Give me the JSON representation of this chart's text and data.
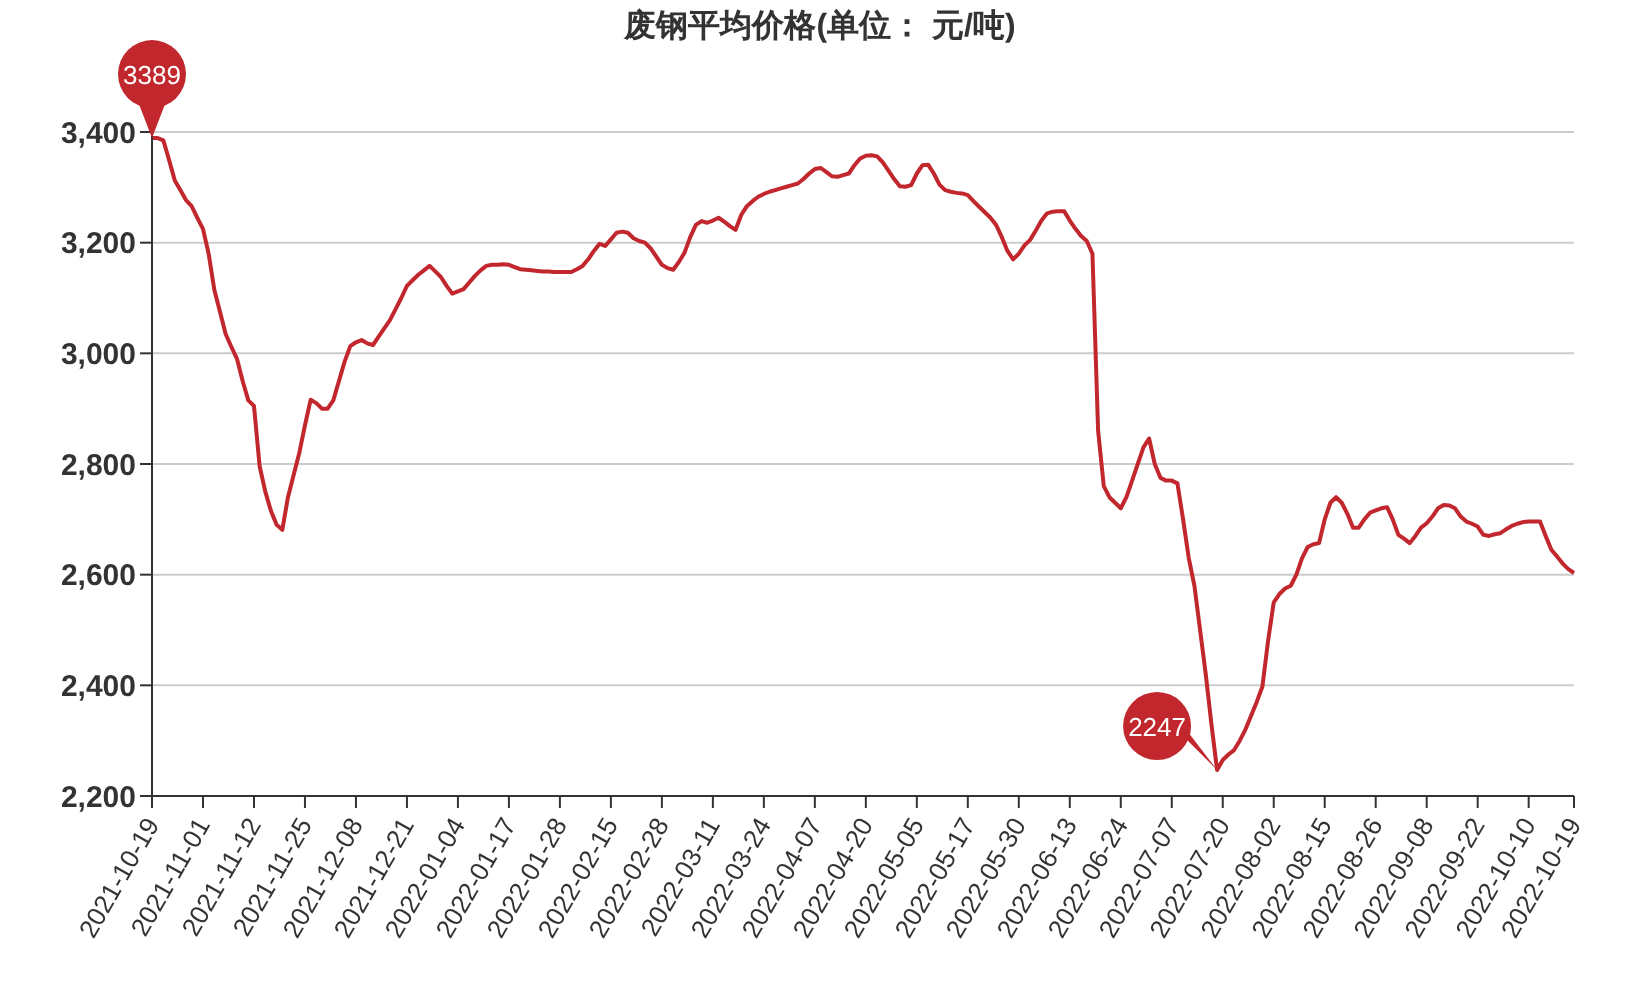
{
  "chart_data": {
    "type": "line",
    "title": "废钢平均价格(单位：  元/吨)",
    "categories": [
      "2021-10-19",
      null,
      null,
      null,
      null,
      null,
      null,
      null,
      null,
      "2021-11-01",
      null,
      null,
      null,
      null,
      null,
      null,
      null,
      null,
      "2021-11-12",
      null,
      null,
      null,
      null,
      null,
      null,
      null,
      null,
      "2021-11-25",
      null,
      null,
      null,
      null,
      null,
      null,
      null,
      null,
      "2021-12-08",
      null,
      null,
      null,
      null,
      null,
      null,
      null,
      null,
      "2021-12-21",
      null,
      null,
      null,
      null,
      null,
      null,
      null,
      null,
      "2022-01-04",
      null,
      null,
      null,
      null,
      null,
      null,
      null,
      null,
      "2022-01-17",
      null,
      null,
      null,
      null,
      null,
      null,
      null,
      null,
      "2022-01-28",
      null,
      null,
      null,
      null,
      null,
      null,
      null,
      null,
      "2022-02-15",
      null,
      null,
      null,
      null,
      null,
      null,
      null,
      null,
      "2022-02-28",
      null,
      null,
      null,
      null,
      null,
      null,
      null,
      null,
      "2022-03-11",
      null,
      null,
      null,
      null,
      null,
      null,
      null,
      null,
      "2022-03-24",
      null,
      null,
      null,
      null,
      null,
      null,
      null,
      null,
      "2022-04-07",
      null,
      null,
      null,
      null,
      null,
      null,
      null,
      null,
      "2022-04-20",
      null,
      null,
      null,
      null,
      null,
      null,
      null,
      null,
      "2022-05-05",
      null,
      null,
      null,
      null,
      null,
      null,
      null,
      null,
      "2022-05-17",
      null,
      null,
      null,
      null,
      null,
      null,
      null,
      null,
      "2022-05-30",
      null,
      null,
      null,
      null,
      null,
      null,
      null,
      null,
      "2022-06-13",
      null,
      null,
      null,
      null,
      null,
      null,
      null,
      null,
      "2022-06-24",
      null,
      null,
      null,
      null,
      null,
      null,
      null,
      null,
      "2022-07-07",
      null,
      null,
      null,
      null,
      null,
      null,
      null,
      null,
      "2022-07-20",
      null,
      null,
      null,
      null,
      null,
      null,
      null,
      null,
      "2022-08-02",
      null,
      null,
      null,
      null,
      null,
      null,
      null,
      null,
      "2022-08-15",
      null,
      null,
      null,
      null,
      null,
      null,
      null,
      null,
      "2022-08-26",
      null,
      null,
      null,
      null,
      null,
      null,
      null,
      null,
      "2022-09-08",
      null,
      null,
      null,
      null,
      null,
      null,
      null,
      null,
      "2022-09-22",
      null,
      null,
      null,
      null,
      null,
      null,
      null,
      null,
      "2022-10-10",
      null,
      null,
      null,
      null,
      null,
      null,
      null,
      "2022-10-19"
    ],
    "values": [
      3389,
      3389,
      3385,
      3350,
      3313,
      3295,
      3277,
      3266,
      3245,
      3225,
      3180,
      3115,
      3075,
      3035,
      3012,
      2990,
      2950,
      2915,
      2905,
      2796,
      2750,
      2715,
      2690,
      2681,
      2740,
      2780,
      2820,
      2870,
      2916,
      2910,
      2900,
      2900,
      2915,
      2950,
      2985,
      3013,
      3020,
      3024,
      3018,
      3015,
      3030,
      3045,
      3060,
      3080,
      3100,
      3122,
      3132,
      3142,
      3150,
      3158,
      3148,
      3138,
      3122,
      3108,
      3112,
      3116,
      3128,
      3140,
      3150,
      3158,
      3160,
      3160,
      3161,
      3160,
      3156,
      3152,
      3151,
      3150,
      3149,
      3148,
      3148,
      3147,
      3147,
      3147,
      3147,
      3152,
      3158,
      3170,
      3185,
      3198,
      3194,
      3206,
      3218,
      3220,
      3218,
      3208,
      3203,
      3200,
      3190,
      3175,
      3160,
      3154,
      3151,
      3165,
      3182,
      3210,
      3232,
      3239,
      3236,
      3240,
      3245,
      3238,
      3230,
      3223,
      3250,
      3266,
      3275,
      3283,
      3288,
      3292,
      3295,
      3298,
      3301,
      3304,
      3307,
      3315,
      3325,
      3333,
      3335,
      3328,
      3320,
      3319,
      3322,
      3325,
      3340,
      3352,
      3357,
      3358,
      3356,
      3345,
      3330,
      3315,
      3302,
      3301,
      3304,
      3325,
      3340,
      3341,
      3325,
      3305,
      3295,
      3292,
      3290,
      3289,
      3286,
      3275,
      3265,
      3255,
      3245,
      3232,
      3210,
      3185,
      3170,
      3180,
      3195,
      3205,
      3222,
      3240,
      3253,
      3256,
      3257,
      3257,
      3240,
      3225,
      3212,
      3203,
      3180,
      2860,
      2760,
      2740,
      2730,
      2720,
      2740,
      2770,
      2800,
      2830,
      2846,
      2800,
      2775,
      2770,
      2770,
      2765,
      2700,
      2630,
      2580,
      2500,
      2420,
      2330,
      2247,
      2265,
      2275,
      2283,
      2300,
      2320,
      2345,
      2370,
      2398,
      2480,
      2550,
      2565,
      2575,
      2580,
      2600,
      2630,
      2650,
      2655,
      2657,
      2700,
      2730,
      2740,
      2730,
      2710,
      2685,
      2685,
      2700,
      2712,
      2716,
      2720,
      2722,
      2700,
      2672,
      2665,
      2657,
      2670,
      2685,
      2693,
      2705,
      2720,
      2726,
      2725,
      2720,
      2705,
      2696,
      2692,
      2687,
      2672,
      2670,
      2673,
      2675,
      2682,
      2688,
      2692,
      2695,
      2696,
      2696,
      2696,
      2670,
      2645,
      2633,
      2620,
      2610,
      2603
    ],
    "color": "#c1272d",
    "ylim": [
      2200,
      3400
    ],
    "yticks": [
      {
        "value": 2200,
        "label": "2,200"
      },
      {
        "value": 2400,
        "label": "2,400"
      },
      {
        "value": 2600,
        "label": "2,600"
      },
      {
        "value": 2800,
        "label": "2,800"
      },
      {
        "value": 3000,
        "label": "3,000"
      },
      {
        "value": 3200,
        "label": "3,200"
      },
      {
        "value": 3400,
        "label": "3,400"
      }
    ],
    "grid": "y",
    "marker": "none",
    "line_style": "solid",
    "annotations": [
      {
        "text": "3389",
        "x": "2021-10-19",
        "y": 3389
      },
      "2247"
    ]
  }
}
